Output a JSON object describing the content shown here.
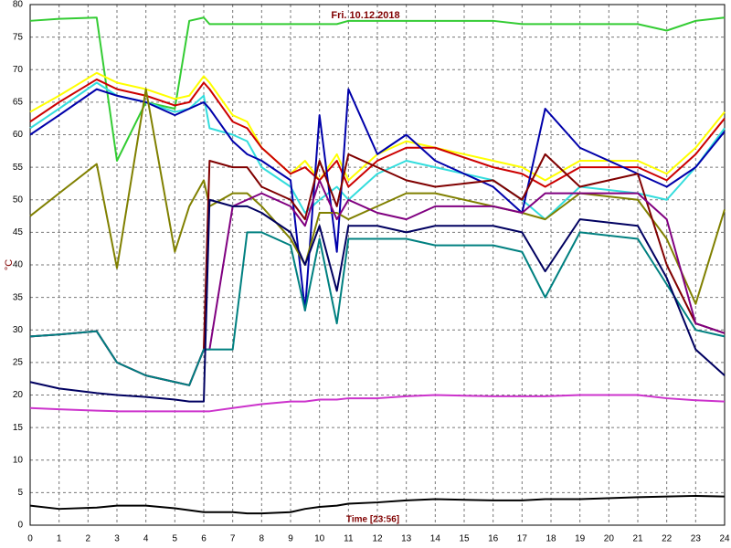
{
  "chart_data": {
    "type": "line",
    "title": "Fri. 10.12.2018",
    "x_label": "Time [23:56]",
    "y_label": "°C",
    "xlim": [
      0,
      24
    ],
    "ylim": [
      0,
      80
    ],
    "xticks": [
      0,
      1,
      2,
      3,
      4,
      5,
      6,
      7,
      8,
      9,
      10,
      11,
      12,
      13,
      14,
      15,
      16,
      17,
      18,
      19,
      20,
      21,
      22,
      23,
      24
    ],
    "yticks": [
      0,
      5,
      10,
      15,
      20,
      25,
      30,
      35,
      40,
      45,
      50,
      55,
      60,
      65,
      70,
      75,
      80
    ],
    "grid": true,
    "x": [
      0,
      1,
      2.3,
      3,
      4,
      5,
      5.5,
      6,
      6.2,
      7,
      7.5,
      8,
      9,
      9.5,
      10,
      10.6,
      11,
      12,
      13,
      14,
      16,
      17,
      17.8,
      19,
      21,
      22,
      23,
      24
    ],
    "series": [
      {
        "color": "#33cc33",
        "values": [
          77.5,
          77.8,
          78,
          56,
          65,
          64,
          77.5,
          78,
          77,
          77,
          77,
          77,
          77,
          77,
          77,
          77,
          77.5,
          77.5,
          77.5,
          77.5,
          77.5,
          77,
          77,
          77,
          77,
          76,
          77.5,
          78
        ]
      },
      {
        "color": "#ffff00",
        "values": [
          63.5,
          66,
          69.5,
          68,
          67,
          65.5,
          66,
          69,
          68,
          63,
          62,
          58,
          54,
          56,
          53,
          57,
          53,
          57,
          59,
          58,
          56,
          55,
          53,
          56,
          56,
          54,
          58,
          63.5
        ]
      },
      {
        "color": "#cc0000",
        "values": [
          62,
          65,
          68.5,
          67,
          66,
          64.5,
          65,
          68,
          67,
          62,
          61,
          58,
          54,
          55,
          53,
          56,
          52,
          56,
          58,
          58,
          55,
          54,
          52,
          55,
          55,
          53,
          57,
          62.5
        ]
      },
      {
        "color": "#33dddd",
        "values": [
          61,
          64,
          68,
          66,
          65,
          63.5,
          64,
          66,
          61,
          60,
          59,
          55,
          52,
          48,
          50,
          52,
          50,
          54,
          56,
          55,
          53,
          50,
          47,
          52,
          51,
          50,
          55,
          61
        ]
      },
      {
        "color": "#0000aa",
        "values": [
          60,
          63,
          67,
          66,
          65,
          63,
          64,
          65,
          64,
          59,
          57,
          56,
          53,
          33,
          63,
          42,
          67,
          57,
          60,
          56,
          52,
          48,
          64,
          58,
          54,
          52,
          55,
          60.5
        ]
      },
      {
        "color": "#808000",
        "values": [
          47.5,
          51,
          55.5,
          39.5,
          67,
          42,
          49,
          53,
          49,
          51,
          51,
          49,
          44,
          40,
          48,
          48,
          47,
          49,
          51,
          51,
          49,
          48,
          47,
          51,
          50,
          44,
          34,
          48.5
        ]
      },
      {
        "color": "#800000",
        "values": [
          29,
          29.3,
          29.8,
          25,
          23,
          22,
          21.5,
          27,
          56,
          55,
          55,
          52,
          50,
          47,
          56,
          49,
          57,
          55,
          53,
          52,
          53,
          50,
          57,
          52,
          54,
          40,
          31,
          29.5
        ]
      },
      {
        "color": "#800080",
        "values": [
          29,
          29.3,
          29.8,
          25,
          23,
          22,
          21.5,
          27,
          27,
          49,
          50,
          51,
          49,
          46,
          53,
          47,
          50,
          48,
          47,
          49,
          49,
          48,
          51,
          51,
          51,
          47,
          31,
          29.5
        ]
      },
      {
        "color": "#008080",
        "values": [
          29,
          29.3,
          29.8,
          25,
          23,
          22,
          21.5,
          27,
          27,
          27,
          45,
          45,
          43,
          33,
          44,
          31,
          44,
          44,
          44,
          43,
          43,
          42,
          35,
          45,
          44,
          37,
          30,
          29
        ]
      },
      {
        "color": "#000060",
        "values": [
          22,
          21,
          20.3,
          20,
          19.7,
          19.3,
          19,
          19,
          50,
          49,
          49,
          48,
          45,
          40,
          46,
          36,
          46,
          46,
          45,
          46,
          46,
          45,
          39,
          47,
          46,
          38,
          27,
          23
        ]
      },
      {
        "color": "#cc33cc",
        "values": [
          18,
          17.8,
          17.6,
          17.5,
          17.5,
          17.5,
          17.5,
          17.5,
          17.5,
          18,
          18.3,
          18.6,
          19,
          19,
          19.3,
          19.3,
          19.5,
          19.5,
          19.8,
          20,
          19.8,
          19.8,
          19.8,
          20,
          20,
          19.5,
          19.2,
          19
        ]
      },
      {
        "color": "#000000",
        "values": [
          3,
          2.5,
          2.7,
          3,
          3,
          2.6,
          2.3,
          2,
          2,
          2,
          1.8,
          1.8,
          2,
          2.5,
          2.8,
          3,
          3.3,
          3.5,
          3.8,
          4,
          3.8,
          3.8,
          4,
          4,
          4.3,
          4.4,
          4.5,
          4.4
        ]
      }
    ]
  }
}
